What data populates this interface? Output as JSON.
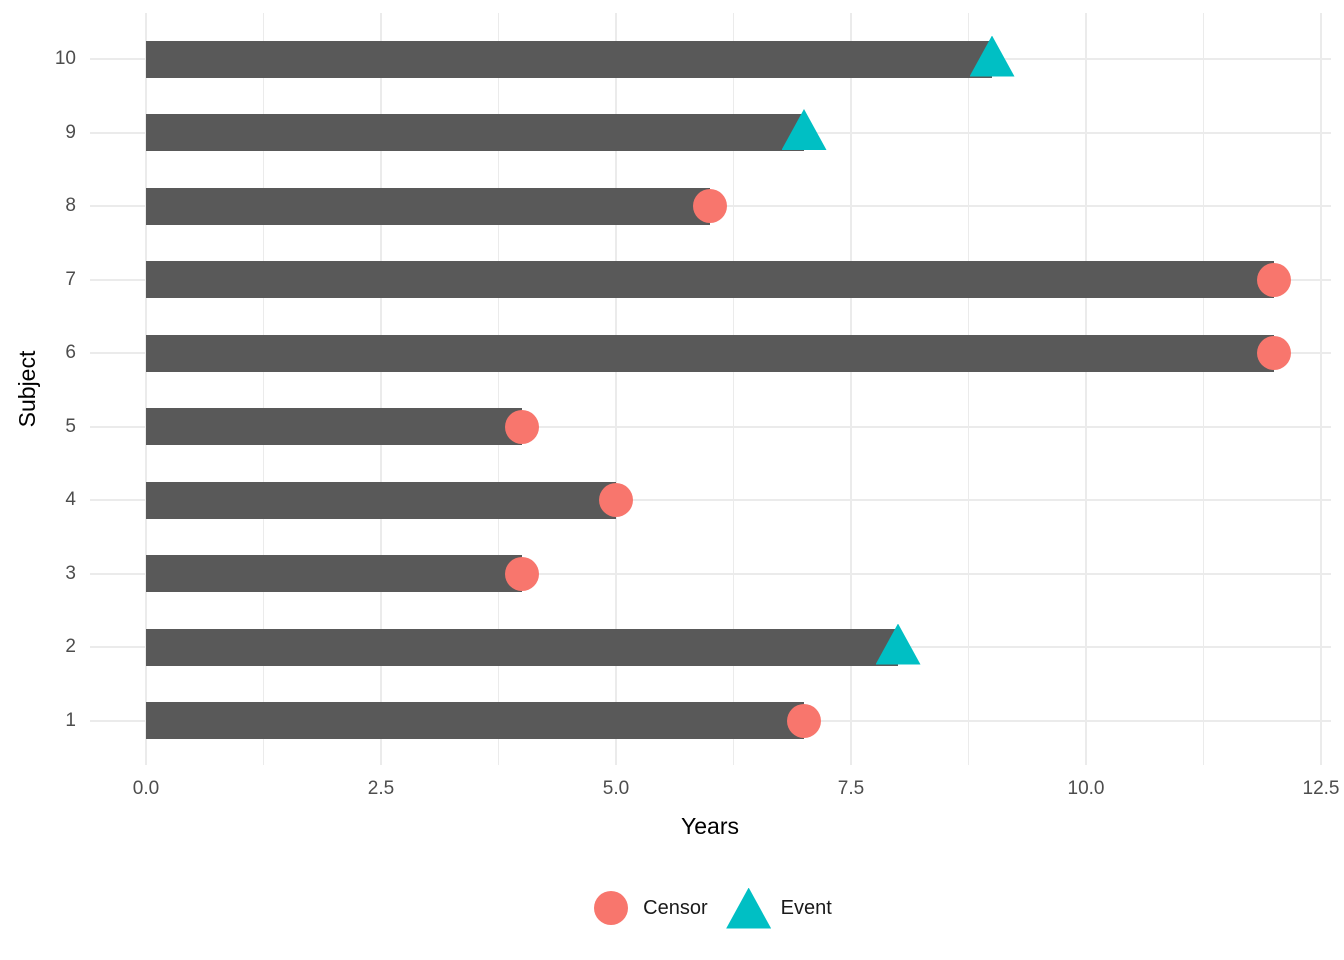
{
  "chart_data": {
    "type": "bar",
    "orientation": "horizontal",
    "title": "",
    "xlabel": "Years",
    "ylabel": "Subject",
    "xlim": [
      0,
      12.5
    ],
    "grid": true,
    "legend_position": "bottom",
    "x_major_ticks": {
      "values": [
        0,
        2.5,
        5,
        7.5,
        10,
        12.5
      ],
      "labels": [
        "0.0",
        "2.5",
        "5.0",
        "7.5",
        "10.0",
        "12.5"
      ]
    },
    "x_minor_ticks": [
      1.25,
      3.75,
      6.25,
      8.75,
      11.25
    ],
    "rows": [
      {
        "subject": "10",
        "years": 9,
        "status": "Event"
      },
      {
        "subject": "9",
        "years": 7,
        "status": "Event"
      },
      {
        "subject": "8",
        "years": 6,
        "status": "Censor"
      },
      {
        "subject": "7",
        "years": 12,
        "status": "Censor"
      },
      {
        "subject": "6",
        "years": 12,
        "status": "Censor"
      },
      {
        "subject": "5",
        "years": 4,
        "status": "Censor"
      },
      {
        "subject": "4",
        "years": 5,
        "status": "Censor"
      },
      {
        "subject": "3",
        "years": 4,
        "status": "Censor"
      },
      {
        "subject": "2",
        "years": 8,
        "status": "Event"
      },
      {
        "subject": "1",
        "years": 7,
        "status": "Censor"
      }
    ],
    "legend": [
      {
        "label": "Censor",
        "marker": "circle",
        "color": "#F8766D"
      },
      {
        "label": "Event",
        "marker": "triangle",
        "color": "#00BFC4"
      }
    ],
    "colors": {
      "bar": "#595959",
      "grid": "#EBEBEB",
      "axis_text": "#4D4D4D",
      "axis_title": "#000000",
      "background": "#FFFFFF"
    }
  }
}
